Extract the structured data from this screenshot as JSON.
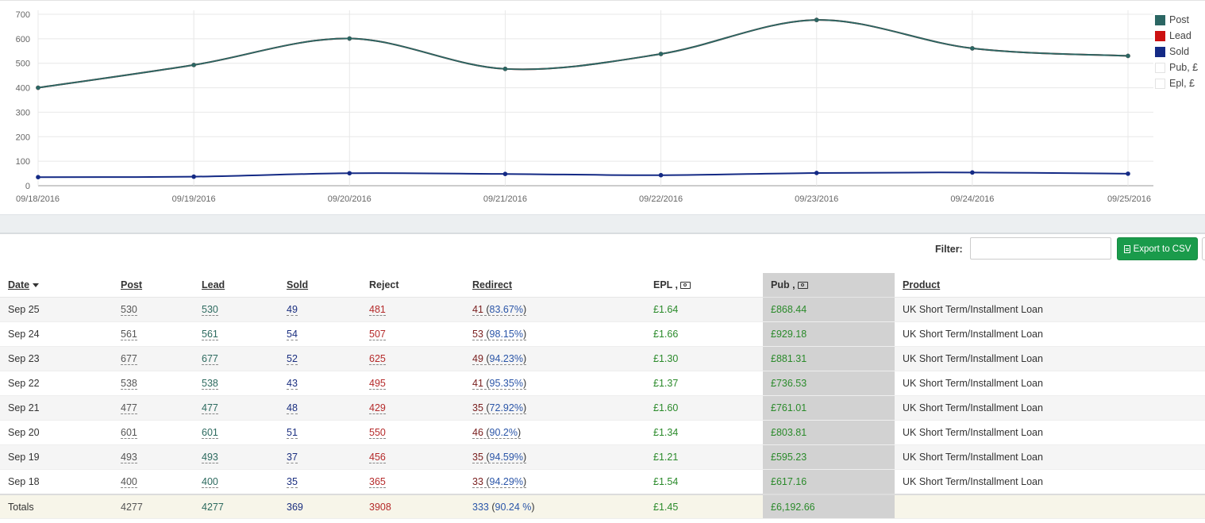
{
  "chart_data": {
    "type": "line",
    "x": [
      "09/18/2016",
      "09/19/2016",
      "09/20/2016",
      "09/21/2016",
      "09/22/2016",
      "09/23/2016",
      "09/24/2016",
      "09/25/2016"
    ],
    "series": [
      {
        "name": "Post",
        "color": "#2b6663",
        "values": [
          400,
          493,
          601,
          477,
          538,
          677,
          561,
          530
        ]
      },
      {
        "name": "Lead",
        "color": "#cc1111",
        "values": [
          400,
          493,
          601,
          477,
          538,
          677,
          561,
          530
        ]
      },
      {
        "name": "Sold",
        "color": "#142a85",
        "values": [
          35,
          37,
          51,
          48,
          43,
          52,
          54,
          49
        ]
      }
    ],
    "legend": [
      {
        "name": "Post",
        "color": "#2b6663"
      },
      {
        "name": "Lead",
        "color": "#cc1111"
      },
      {
        "name": "Sold",
        "color": "#142a85"
      },
      {
        "name": "Pub, £",
        "color": "#ffffff"
      },
      {
        "name": "Epl, £",
        "color": "#ffffff"
      }
    ],
    "yticks": [
      0,
      100,
      200,
      300,
      400,
      500,
      600,
      700
    ],
    "ylim": [
      0,
      700
    ],
    "grid": true,
    "legend_placement": "right"
  },
  "filter": {
    "label": "Filter:",
    "value": "",
    "placeholder": ""
  },
  "export_label": "Export to CSV",
  "table": {
    "headers": {
      "date": "Date",
      "post": "Post",
      "lead": "Lead",
      "sold": "Sold",
      "reject": "Reject",
      "redirect": "Redirect",
      "epl": "EPL ,",
      "pub": "Pub ,",
      "product": "Product"
    },
    "rows": [
      {
        "date": "Sep 25",
        "post": "530",
        "lead": "530",
        "sold": "49",
        "reject": "481",
        "redirect": "41",
        "redirect_pct": "83.67%",
        "epl": "£1.64",
        "pub": "£868.44",
        "product": "UK Short Term/Installment Loan"
      },
      {
        "date": "Sep 24",
        "post": "561",
        "lead": "561",
        "sold": "54",
        "reject": "507",
        "redirect": "53",
        "redirect_pct": "98.15%",
        "epl": "£1.66",
        "pub": "£929.18",
        "product": "UK Short Term/Installment Loan"
      },
      {
        "date": "Sep 23",
        "post": "677",
        "lead": "677",
        "sold": "52",
        "reject": "625",
        "redirect": "49",
        "redirect_pct": "94.23%",
        "epl": "£1.30",
        "pub": "£881.31",
        "product": "UK Short Term/Installment Loan"
      },
      {
        "date": "Sep 22",
        "post": "538",
        "lead": "538",
        "sold": "43",
        "reject": "495",
        "redirect": "41",
        "redirect_pct": "95.35%",
        "epl": "£1.37",
        "pub": "£736.53",
        "product": "UK Short Term/Installment Loan"
      },
      {
        "date": "Sep 21",
        "post": "477",
        "lead": "477",
        "sold": "48",
        "reject": "429",
        "redirect": "35",
        "redirect_pct": "72.92%",
        "epl": "£1.60",
        "pub": "£761.01",
        "product": "UK Short Term/Installment Loan"
      },
      {
        "date": "Sep 20",
        "post": "601",
        "lead": "601",
        "sold": "51",
        "reject": "550",
        "redirect": "46",
        "redirect_pct": "90.2%",
        "epl": "£1.34",
        "pub": "£803.81",
        "product": "UK Short Term/Installment Loan"
      },
      {
        "date": "Sep 19",
        "post": "493",
        "lead": "493",
        "sold": "37",
        "reject": "456",
        "redirect": "35",
        "redirect_pct": "94.59%",
        "epl": "£1.21",
        "pub": "£595.23",
        "product": "UK Short Term/Installment Loan"
      },
      {
        "date": "Sep 18",
        "post": "400",
        "lead": "400",
        "sold": "35",
        "reject": "365",
        "redirect": "33",
        "redirect_pct": "94.29%",
        "epl": "£1.54",
        "pub": "£617.16",
        "product": "UK Short Term/Installment Loan"
      }
    ],
    "totals": {
      "label": "Totals",
      "post": "4277",
      "lead": "4277",
      "sold": "369",
      "reject": "3908",
      "redirect": "333",
      "redirect_pct": "90.24 %",
      "epl": "£1.45",
      "pub": "£6,192.66"
    }
  }
}
